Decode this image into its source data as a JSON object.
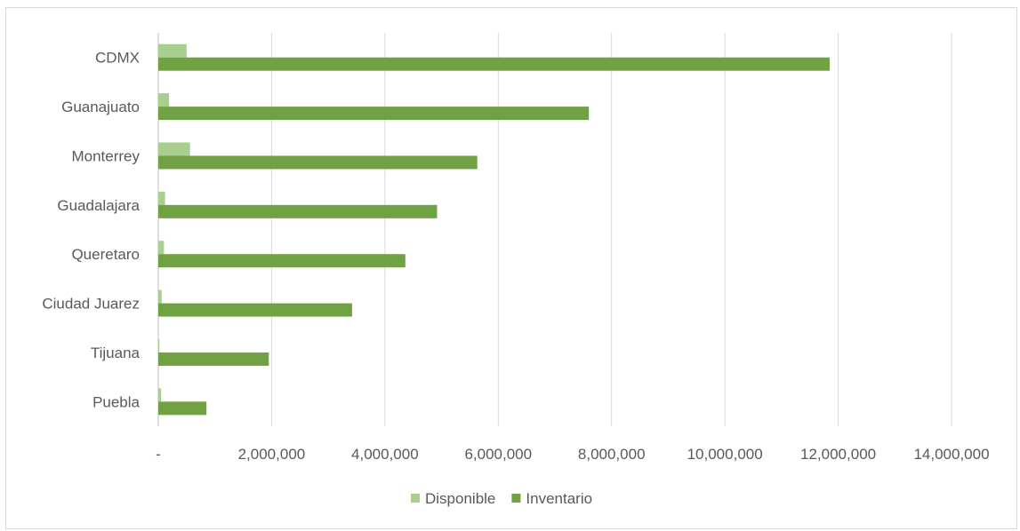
{
  "chart_data": {
    "type": "bar",
    "orientation": "horizontal",
    "categories": [
      "CDMX",
      "Guanajuato",
      "Monterrey",
      "Guadalajara",
      "Queretaro",
      "Ciudad Juarez",
      "Tijuana",
      "Puebla"
    ],
    "series": [
      {
        "name": "Disponible",
        "color": "#a9cf8e",
        "values": [
          500000,
          190000,
          560000,
          120000,
          100000,
          60000,
          20000,
          50000
        ]
      },
      {
        "name": "Inventario",
        "color": "#70a142",
        "values": [
          11850000,
          7600000,
          5630000,
          4920000,
          4360000,
          3420000,
          1950000,
          850000
        ]
      }
    ],
    "x_ticks": [
      "-",
      "2,000,000",
      "4,000,000",
      "6,000,000",
      "8,000,000",
      "10,000,000",
      "12,000,000",
      "14,000,000"
    ],
    "xlim": [
      0,
      14000000
    ],
    "grid": true,
    "legend_position": "bottom"
  }
}
